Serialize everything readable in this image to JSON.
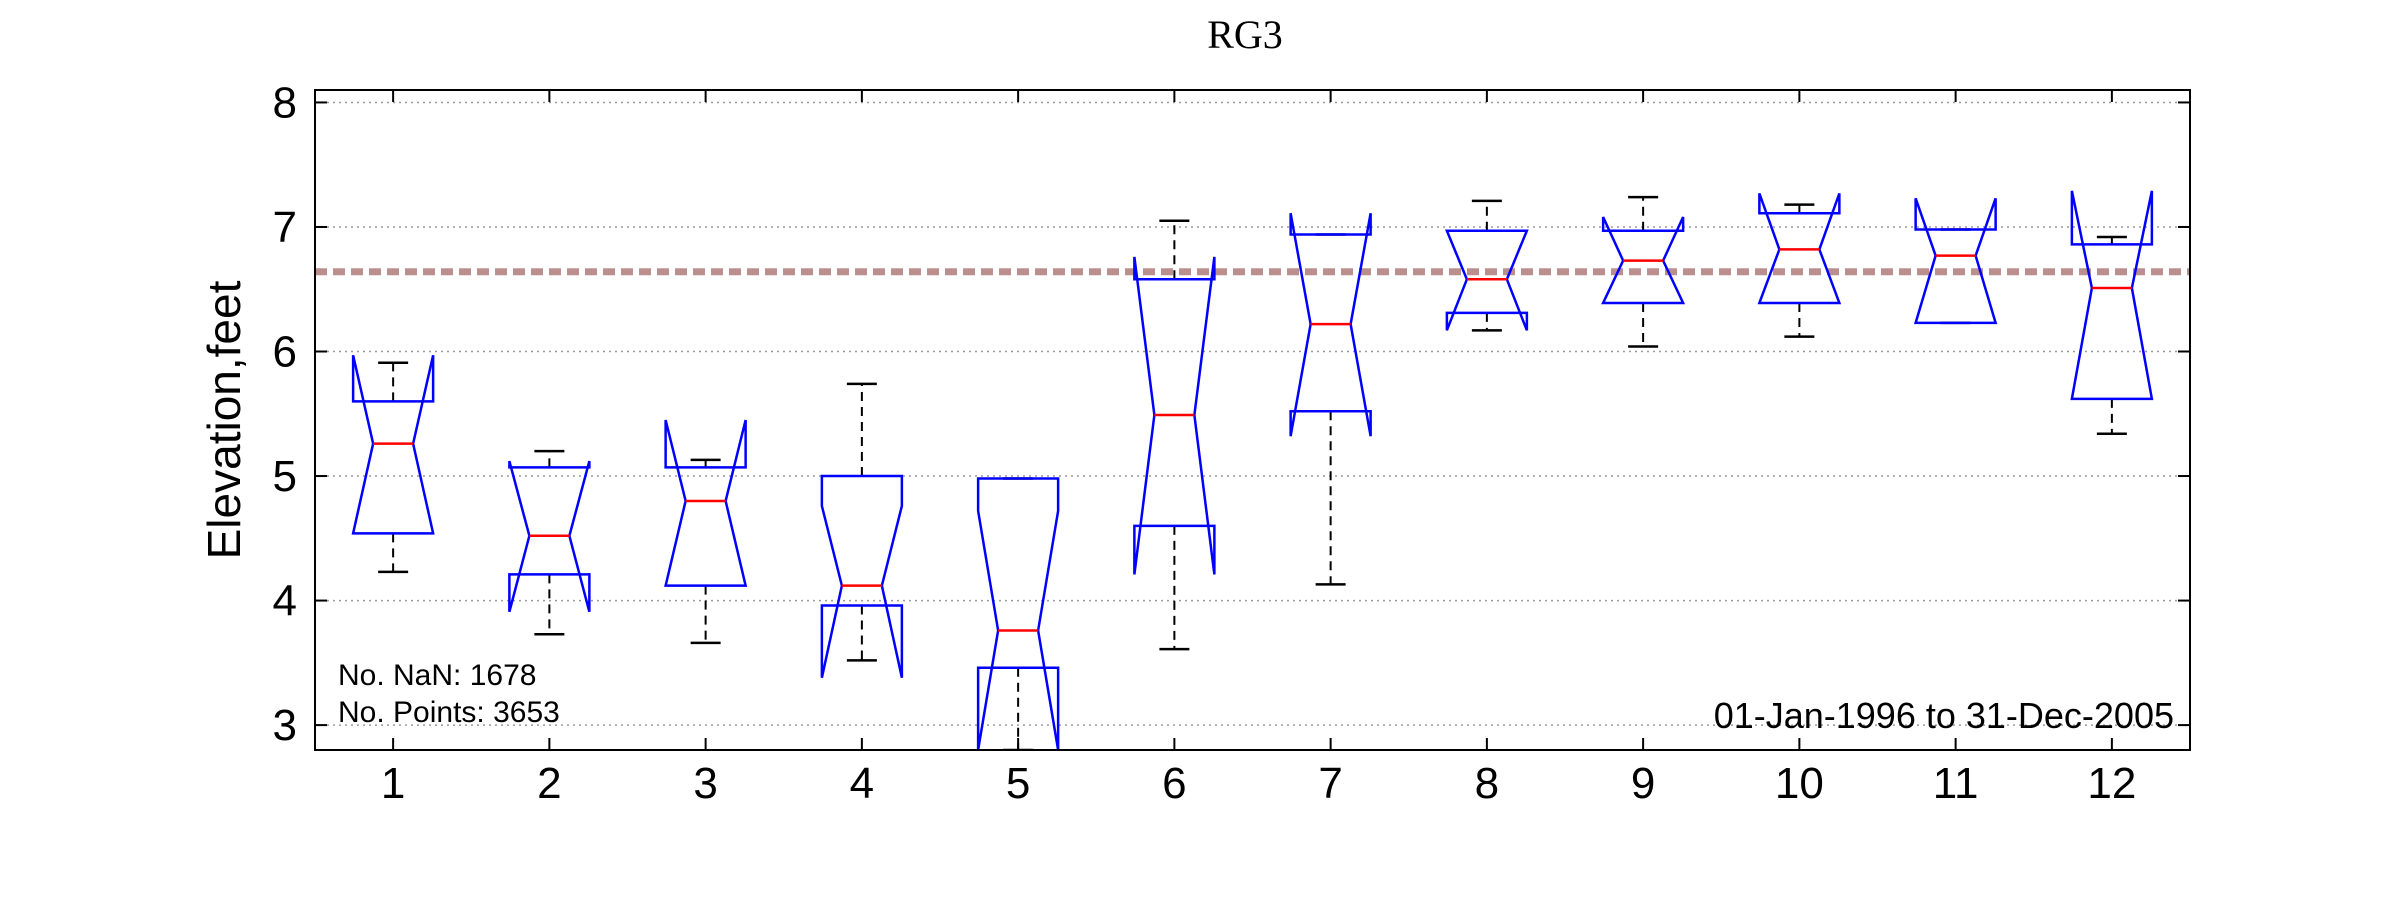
{
  "chart_data": {
    "type": "boxplot",
    "title": "RG3",
    "xlabel": "",
    "ylabel": "Elevation,feet",
    "ylim": [
      2.8,
      8.1
    ],
    "y_ticks": [
      3,
      4,
      5,
      6,
      7,
      8
    ],
    "grid": "horizontal dotted",
    "notched": true,
    "categories": [
      "1",
      "2",
      "3",
      "4",
      "5",
      "6",
      "7",
      "8",
      "9",
      "10",
      "11",
      "12"
    ],
    "boxes": [
      {
        "whisker_low": 4.23,
        "q1": 4.54,
        "median": 5.26,
        "q3": 5.6,
        "whisker_high": 5.91,
        "notch_low": 4.54,
        "notch_high": 5.97
      },
      {
        "whisker_low": 3.73,
        "q1": 4.21,
        "median": 4.52,
        "q3": 5.07,
        "whisker_high": 5.2,
        "notch_low": 3.91,
        "notch_high": 5.12
      },
      {
        "whisker_low": 3.66,
        "q1": 4.12,
        "median": 4.8,
        "q3": 5.07,
        "whisker_high": 5.13,
        "notch_low": 4.12,
        "notch_high": 5.45
      },
      {
        "whisker_low": 3.52,
        "q1": 3.96,
        "median": 4.12,
        "q3": 5.0,
        "whisker_high": 5.74,
        "notch_low": 3.38,
        "notch_high": 4.76
      },
      {
        "whisker_low": 2.8,
        "q1": 3.46,
        "median": 3.76,
        "q3": 4.98,
        "whisker_high": 4.98,
        "notch_low": 2.8,
        "notch_high": 4.72
      },
      {
        "whisker_low": 3.61,
        "q1": 4.6,
        "median": 5.49,
        "q3": 6.58,
        "whisker_high": 7.05,
        "notch_low": 4.21,
        "notch_high": 6.76
      },
      {
        "whisker_low": 4.13,
        "q1": 5.52,
        "median": 6.22,
        "q3": 6.94,
        "whisker_high": 6.94,
        "notch_low": 5.32,
        "notch_high": 7.11
      },
      {
        "whisker_low": 6.17,
        "q1": 6.31,
        "median": 6.58,
        "q3": 6.97,
        "whisker_high": 7.21,
        "notch_low": 6.17,
        "notch_high": 6.97
      },
      {
        "whisker_low": 6.04,
        "q1": 6.39,
        "median": 6.73,
        "q3": 6.97,
        "whisker_high": 7.24,
        "notch_low": 6.39,
        "notch_high": 7.08
      },
      {
        "whisker_low": 6.12,
        "q1": 6.39,
        "median": 6.82,
        "q3": 7.11,
        "whisker_high": 7.18,
        "notch_low": 6.39,
        "notch_high": 7.27
      },
      {
        "whisker_low": 6.23,
        "q1": 6.23,
        "median": 6.77,
        "q3": 6.98,
        "whisker_high": 6.98,
        "notch_low": 6.23,
        "notch_high": 7.23
      },
      {
        "whisker_low": 5.34,
        "q1": 5.62,
        "median": 6.51,
        "q3": 6.86,
        "whisker_high": 6.92,
        "notch_low": 5.62,
        "notch_high": 7.29
      }
    ],
    "reference_line": {
      "y": 6.64,
      "color": "#bc8f8f",
      "style": "dashed"
    },
    "annotations": {
      "nan_count": "No. NaN: 1678",
      "points": "No. Points: 3653",
      "date_range": "01-Jan-1996 to 31-Dec-2005"
    },
    "colors": {
      "box": "#0000ff",
      "median": "#ff0000",
      "whisker": "#000000",
      "grid": "#9a9a9a"
    }
  }
}
